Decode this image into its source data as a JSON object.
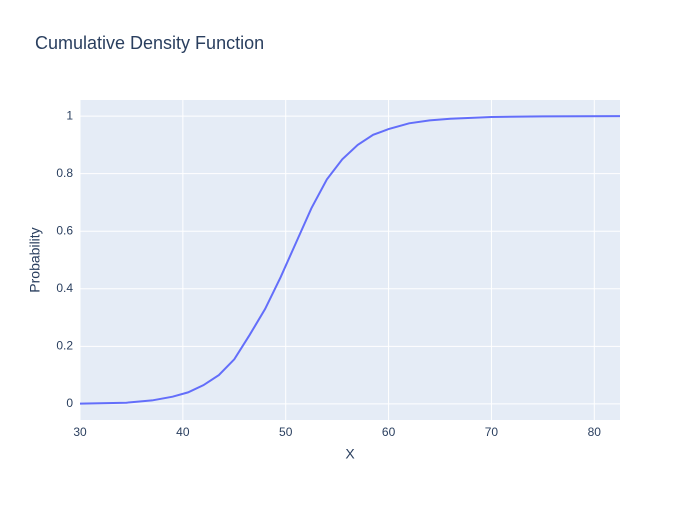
{
  "chart_data": {
    "type": "line",
    "title": "Cumulative Density Function",
    "x_label": "X",
    "y_label": "Probability",
    "x": [
      30,
      34.5,
      37,
      39,
      40.5,
      42,
      43.5,
      45,
      46.5,
      48,
      49.5,
      51,
      52.5,
      54,
      55.5,
      57,
      58.5,
      60,
      62,
      64,
      66,
      70,
      75,
      82.5
    ],
    "series": [
      {
        "color": "#636efa",
        "values": [
          0.001,
          0.004,
          0.012,
          0.025,
          0.04,
          0.065,
          0.1,
          0.155,
          0.24,
          0.33,
          0.44,
          0.56,
          0.68,
          0.78,
          0.85,
          0.9,
          0.935,
          0.955,
          0.975,
          0.985,
          0.991,
          0.997,
          0.999,
          1.0
        ]
      }
    ],
    "xlim": [
      30,
      82.5
    ],
    "xticks": [
      30,
      40,
      50,
      60,
      70,
      80
    ],
    "ylim": [
      -0.056,
      1.056
    ],
    "yticks": [
      0,
      0.2,
      0.4,
      0.6,
      0.8,
      1
    ],
    "grid": true
  }
}
